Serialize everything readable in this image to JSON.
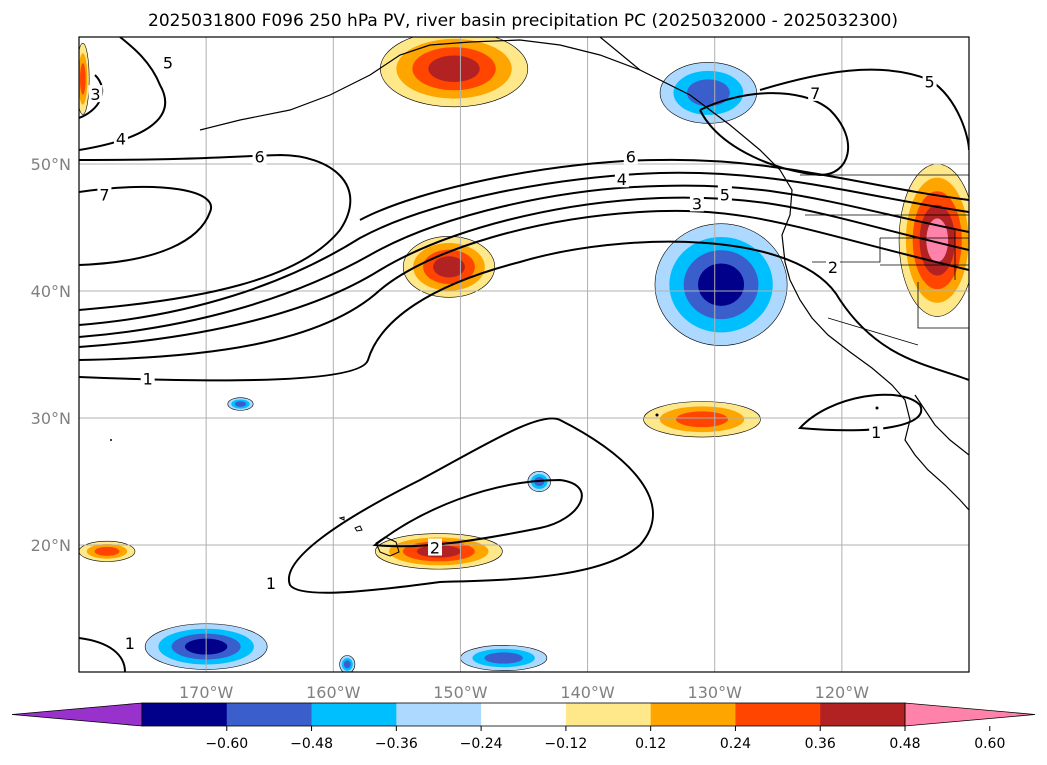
{
  "title": "2025031800 F096 250 hPa PV, river basin precipitation PC (2025032000 - 2025032300)",
  "map": {
    "projection": "PlateCarree",
    "lon_range": [
      -180,
      -110
    ],
    "lat_range": [
      10,
      60
    ],
    "gridlines": true,
    "coastlines": true,
    "state_borders": true,
    "background": "#ffffff"
  },
  "axes": {
    "lon_ticks": [
      {
        "value": -170,
        "label": "170°W"
      },
      {
        "value": -160,
        "label": "160°W"
      },
      {
        "value": -150,
        "label": "150°W"
      },
      {
        "value": -140,
        "label": "140°W"
      },
      {
        "value": -130,
        "label": "130°W"
      },
      {
        "value": -120,
        "label": "120°W"
      }
    ],
    "lat_ticks": [
      {
        "value": 20,
        "label": "20°N"
      },
      {
        "value": 30,
        "label": "30°N"
      },
      {
        "value": 40,
        "label": "40°N"
      },
      {
        "value": 50,
        "label": "50°N"
      }
    ]
  },
  "colorbar": {
    "orientation": "horizontal",
    "extend": "both",
    "levels": [
      -0.72,
      -0.6,
      -0.48,
      -0.36,
      -0.24,
      -0.12,
      0.12,
      0.24,
      0.36,
      0.48,
      0.6,
      0.72
    ],
    "colors": [
      "#9932CC",
      "#00008B",
      "#3A5FCD",
      "#00BFFF",
      "#ADD8FF",
      "#FFFFFF",
      "#FFE88A",
      "#FFA500",
      "#FF4500",
      "#B22222",
      "#FF82AB"
    ],
    "tick_labels": [
      "−0.60",
      "−0.48",
      "−0.36",
      "−0.24",
      "−0.12",
      "0.12",
      "0.24",
      "0.36",
      "0.48",
      "0.60"
    ]
  },
  "pv_contours": {
    "levels": [
      1,
      2,
      3,
      4,
      5,
      6,
      7
    ],
    "color": "#000000",
    "labels": [
      {
        "text": "1",
        "lon": -174.6,
        "lat": 33.1
      },
      {
        "text": "1",
        "lon": -164.9,
        "lat": 17.0
      },
      {
        "text": "1",
        "lon": -176.0,
        "lat": 12.3
      },
      {
        "text": "1",
        "lon": -117.3,
        "lat": 28.9
      },
      {
        "text": "2",
        "lon": -152.0,
        "lat": 19.8
      },
      {
        "text": "2",
        "lon": -120.7,
        "lat": 41.9
      },
      {
        "text": "3",
        "lon": -131.4,
        "lat": 46.9
      },
      {
        "text": "4",
        "lon": -137.3,
        "lat": 48.8
      },
      {
        "text": "5",
        "lon": -129.2,
        "lat": 47.6
      },
      {
        "text": "6",
        "lon": -136.6,
        "lat": 50.6
      },
      {
        "text": "6",
        "lon": -165.8,
        "lat": 50.6
      },
      {
        "text": "7",
        "lon": -178.0,
        "lat": 47.6
      },
      {
        "text": "4",
        "lon": -176.7,
        "lat": 52.0
      },
      {
        "text": "5",
        "lon": -173.0,
        "lat": 58.0
      },
      {
        "text": "3",
        "lon": -178.7,
        "lat": 55.5
      },
      {
        "text": "7",
        "lon": -122.1,
        "lat": 55.6
      },
      {
        "text": "5",
        "lon": -113.1,
        "lat": 56.5
      }
    ]
  },
  "precip_regions": [
    {
      "name": "gulf-of-alaska-positive",
      "value": 0.5,
      "center": [
        -150.5,
        57.5
      ],
      "radius": [
        5.8,
        3.0
      ]
    },
    {
      "name": "central-pacific-positive",
      "value": 0.5,
      "center": [
        -150.9,
        41.9
      ],
      "radius": [
        3.6,
        2.4
      ]
    },
    {
      "name": "hawaii-positive",
      "value": 0.48,
      "center": [
        -151.7,
        19.5
      ],
      "radius": [
        5.0,
        1.4
      ]
    },
    {
      "name": "subtropical-positive",
      "value": 0.4,
      "center": [
        -131.0,
        29.9
      ],
      "radius": [
        4.6,
        1.4
      ]
    },
    {
      "name": "west-coast-positive",
      "value": 0.62,
      "center": [
        -112.5,
        44.0
      ],
      "radius": [
        3.0,
        6.0
      ]
    },
    {
      "name": "far-west-positive",
      "value": 0.38,
      "center": [
        -179.7,
        56.7
      ],
      "radius": [
        0.5,
        2.8
      ]
    },
    {
      "name": "dateline-positive",
      "value": 0.36,
      "center": [
        -177.8,
        19.5
      ],
      "radius": [
        2.2,
        0.8
      ]
    },
    {
      "name": "offshore-california-negative",
      "value": -0.55,
      "center": [
        -129.5,
        40.5
      ],
      "radius": [
        5.2,
        4.8
      ]
    },
    {
      "name": "southeast-alaska-negative",
      "value": -0.44,
      "center": [
        -130.5,
        55.6
      ],
      "radius": [
        3.8,
        2.4
      ]
    },
    {
      "name": "tropical-negative-left",
      "value": -0.55,
      "center": [
        -170.0,
        12.0
      ],
      "radius": [
        4.8,
        1.8
      ]
    },
    {
      "name": "tropical-negative-right",
      "value": -0.45,
      "center": [
        -146.6,
        11.1
      ],
      "radius": [
        3.4,
        1.0
      ]
    },
    {
      "name": "small-negative-1",
      "value": -0.42,
      "center": [
        -167.3,
        31.1
      ],
      "radius": [
        1.0,
        0.5
      ]
    },
    {
      "name": "small-negative-2",
      "value": -0.4,
      "center": [
        -143.8,
        25.0
      ],
      "radius": [
        0.9,
        0.8
      ]
    },
    {
      "name": "small-negative-3",
      "value": -0.4,
      "center": [
        -158.9,
        10.6
      ],
      "radius": [
        0.6,
        0.7
      ]
    }
  ]
}
